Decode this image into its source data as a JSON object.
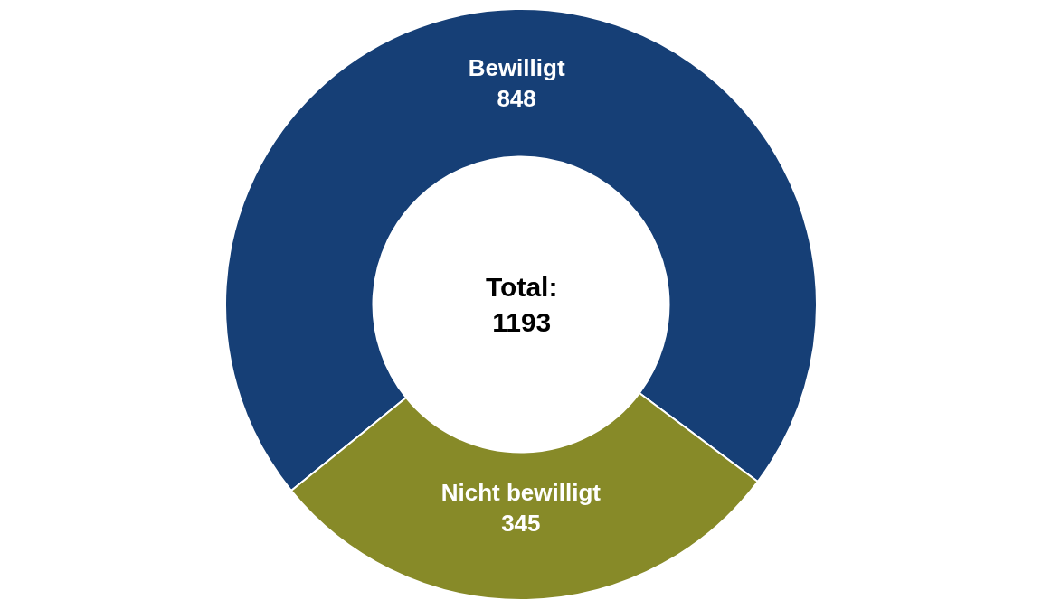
{
  "chart_data": {
    "type": "donut",
    "categories": [
      "Bewilligt",
      "Nicht bewilligt"
    ],
    "values": [
      848,
      345
    ],
    "colors": [
      "#163f76",
      "#878a28"
    ],
    "data_labels": true,
    "legend": false,
    "annotations": [
      "Total:\n1193"
    ]
  }
}
